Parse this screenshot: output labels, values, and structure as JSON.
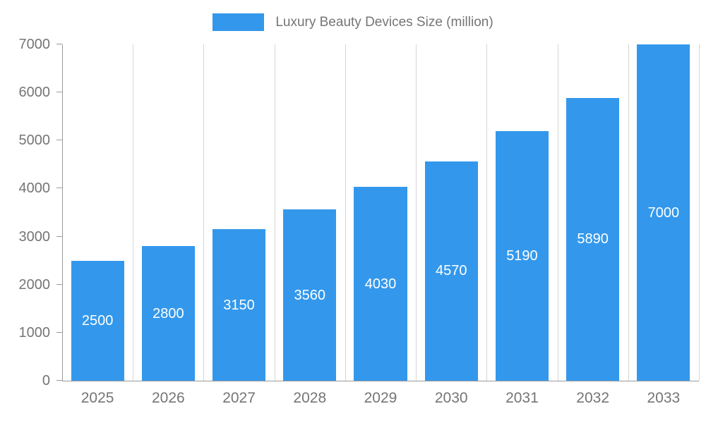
{
  "legend": {
    "label": "Luxury Beauty Devices Size (million)"
  },
  "colors": {
    "bar": "#3398EC",
    "axis_text": "#757575",
    "gridline": "#d6d6d6",
    "axis_line": "#9a9a9a",
    "value_label": "#ffffff"
  },
  "chart_data": {
    "type": "bar",
    "categories": [
      "2025",
      "2026",
      "2027",
      "2028",
      "2029",
      "2030",
      "2031",
      "2032",
      "2033"
    ],
    "series": [
      {
        "name": "Luxury Beauty Devices Size (million)",
        "values": [
          2500,
          2800,
          3150,
          3560,
          4030,
          4570,
          5190,
          5890,
          7000
        ]
      }
    ],
    "title": "",
    "xlabel": "",
    "ylabel": "",
    "ylim": [
      0,
      7000
    ],
    "yticks": [
      0,
      1000,
      2000,
      3000,
      4000,
      5000,
      6000,
      7000
    ],
    "legend_position": "top-center",
    "grid": "vertical",
    "value_labels": "inside-center"
  }
}
